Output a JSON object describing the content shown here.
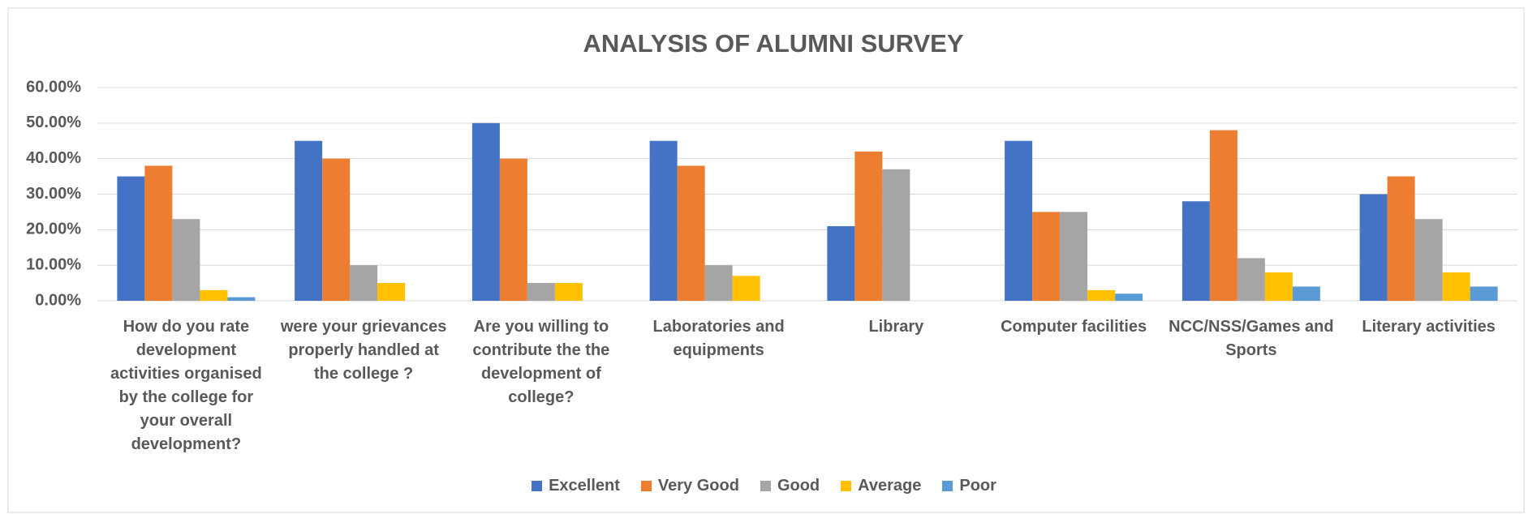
{
  "chart_data": {
    "type": "bar",
    "title": "ANALYSIS OF ALUMNI SURVEY",
    "categories": [
      "How do you rate development activities organised by the college for your overall development?",
      "were your grievances properly handled at the college ?",
      "Are you willing to contribute the the development of college?",
      "Laboratories and equipments",
      "Library",
      "Computer facilities",
      "NCC/NSS/Games and Sports",
      "Literary activities"
    ],
    "series": [
      {
        "name": "Excellent",
        "color": "#4472c4",
        "values": [
          35,
          45,
          50,
          45,
          21,
          45,
          28,
          30
        ]
      },
      {
        "name": "Very Good",
        "color": "#ed7d31",
        "values": [
          38,
          40,
          40,
          38,
          42,
          25,
          48,
          35
        ]
      },
      {
        "name": "Good",
        "color": "#a5a5a5",
        "values": [
          23,
          10,
          5,
          10,
          37,
          25,
          12,
          23
        ]
      },
      {
        "name": "Average",
        "color": "#ffc000",
        "values": [
          3,
          5,
          5,
          7,
          0,
          3,
          8,
          8
        ]
      },
      {
        "name": "Poor",
        "color": "#5b9bd5",
        "values": [
          1,
          0,
          0,
          0,
          0,
          2,
          4,
          4
        ]
      }
    ],
    "ylim": [
      0,
      60
    ],
    "yticks": [
      {
        "value": 0,
        "label": "0.00%"
      },
      {
        "value": 10,
        "label": "10.00%"
      },
      {
        "value": 20,
        "label": "20.00%"
      },
      {
        "value": 30,
        "label": "30.00%"
      },
      {
        "value": 40,
        "label": "40.00%"
      },
      {
        "value": 50,
        "label": "50.00%"
      },
      {
        "value": 60,
        "label": "60.00%"
      }
    ],
    "grid": true,
    "legend": "bottom"
  }
}
